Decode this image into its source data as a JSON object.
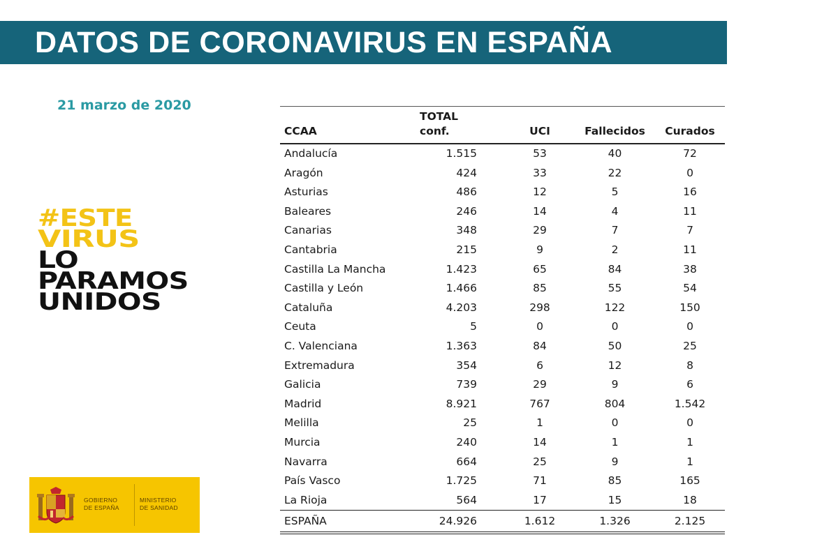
{
  "header": {
    "title": "DATOS DE CORONAVIRUS EN ESPAÑA"
  },
  "date": "21 marzo de 2020",
  "slogan": {
    "line1": "#ESTE",
    "line2": "VIRUS",
    "line3": "LO",
    "line4": "PARAMOS",
    "line5": "UNIDOS"
  },
  "logo": {
    "gobierno_line1": "GOBIERNO",
    "gobierno_line2": "DE ESPAÑA",
    "ministerio_line1": "MINISTERIO",
    "ministerio_line2": "DE SANIDAD"
  },
  "colors": {
    "banner": "#16647a",
    "date": "#2a9aa3",
    "slogan_yellow": "#f3c316",
    "logo_bg": "#f6c500"
  },
  "table": {
    "headers": {
      "ccaa": "CCAA",
      "total_line1": "TOTAL",
      "total_line2": "conf.",
      "uci": "UCI",
      "fallecidos": "Fallecidos",
      "curados": "Curados"
    },
    "rows": [
      [
        "Andalucía",
        "1.515",
        "53",
        "40",
        "72"
      ],
      [
        "Aragón",
        "424",
        "33",
        "22",
        "0"
      ],
      [
        "Asturias",
        "486",
        "12",
        "5",
        "16"
      ],
      [
        "Baleares",
        "246",
        "14",
        "4",
        "11"
      ],
      [
        "Canarias",
        "348",
        "29",
        "7",
        "7"
      ],
      [
        "Cantabria",
        "215",
        "9",
        "2",
        "11"
      ],
      [
        "Castilla La Mancha",
        "1.423",
        "65",
        "84",
        "38"
      ],
      [
        "Castilla y León",
        "1.466",
        "85",
        "55",
        "54"
      ],
      [
        "Cataluña",
        "4.203",
        "298",
        "122",
        "150"
      ],
      [
        "Ceuta",
        "5",
        "0",
        "0",
        "0"
      ],
      [
        "C. Valenciana",
        "1.363",
        "84",
        "50",
        "25"
      ],
      [
        "Extremadura",
        "354",
        "6",
        "12",
        "8"
      ],
      [
        "Galicia",
        "739",
        "29",
        "9",
        "6"
      ],
      [
        "Madrid",
        "8.921",
        "767",
        "804",
        "1.542"
      ],
      [
        "Melilla",
        "25",
        "1",
        "0",
        "0"
      ],
      [
        "Murcia",
        "240",
        "14",
        "1",
        "1"
      ],
      [
        "Navarra",
        "664",
        "25",
        "9",
        "1"
      ],
      [
        "País Vasco",
        "1.725",
        "71",
        "85",
        "165"
      ],
      [
        "La Rioja",
        "564",
        "17",
        "15",
        "18"
      ]
    ],
    "total": [
      "ESPAÑA",
      "24.926",
      "1.612",
      "1.326",
      "2.125"
    ]
  }
}
